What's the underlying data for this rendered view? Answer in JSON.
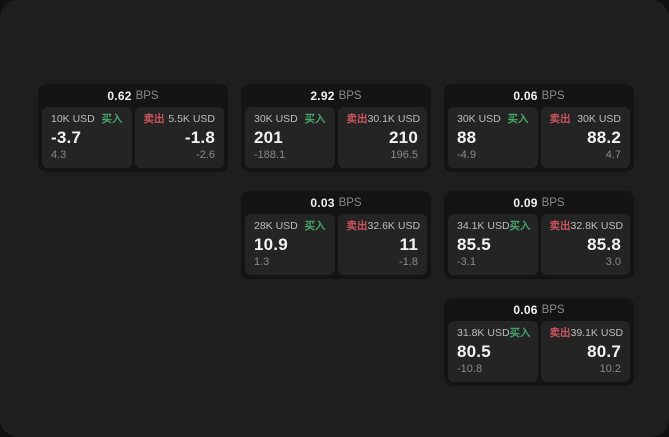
{
  "labels": {
    "buy": "买入",
    "sell": "卖出",
    "bps_unit": "BPS"
  },
  "colors": {
    "page_bg": "#111111",
    "panel_bg": "#1e1e1e",
    "card_bg": "#141414",
    "tile_bg": "#242424",
    "buy_accent": "#46a36c",
    "sell_accent": "#c9535f",
    "text_primary": "#f2f2f2",
    "text_secondary": "#bdbdbd",
    "text_muted": "#8a8a8a"
  },
  "cards": [
    {
      "bps": "0.62",
      "row": 1,
      "col": 1,
      "buy": {
        "amount": "10K USD",
        "price": "-3.7",
        "delta": "4.3"
      },
      "sell": {
        "amount": "5.5K USD",
        "price": "-1.8",
        "delta": "-2.6"
      }
    },
    {
      "bps": "2.92",
      "row": 1,
      "col": 2,
      "buy": {
        "amount": "30K USD",
        "price": "201",
        "delta": "-188.1"
      },
      "sell": {
        "amount": "30.1K USD",
        "price": "210",
        "delta": "196.5"
      }
    },
    {
      "bps": "0.06",
      "row": 1,
      "col": 3,
      "buy": {
        "amount": "30K USD",
        "price": "88",
        "delta": "-4.9"
      },
      "sell": {
        "amount": "30K USD",
        "price": "88.2",
        "delta": "4.7"
      }
    },
    {
      "bps": "0.03",
      "row": 2,
      "col": 2,
      "buy": {
        "amount": "28K USD",
        "price": "10.9",
        "delta": "1.3"
      },
      "sell": {
        "amount": "32.6K USD",
        "price": "11",
        "delta": "-1.8"
      }
    },
    {
      "bps": "0.09",
      "row": 2,
      "col": 3,
      "buy": {
        "amount": "34.1K USD",
        "price": "85.5",
        "delta": "-3.1"
      },
      "sell": {
        "amount": "32.8K USD",
        "price": "85.8",
        "delta": "3.0"
      }
    },
    {
      "bps": "0.06",
      "row": 3,
      "col": 3,
      "buy": {
        "amount": "31.8K USD",
        "price": "80.5",
        "delta": "-10.8"
      },
      "sell": {
        "amount": "39.1K USD",
        "price": "80.7",
        "delta": "10.2"
      }
    }
  ]
}
